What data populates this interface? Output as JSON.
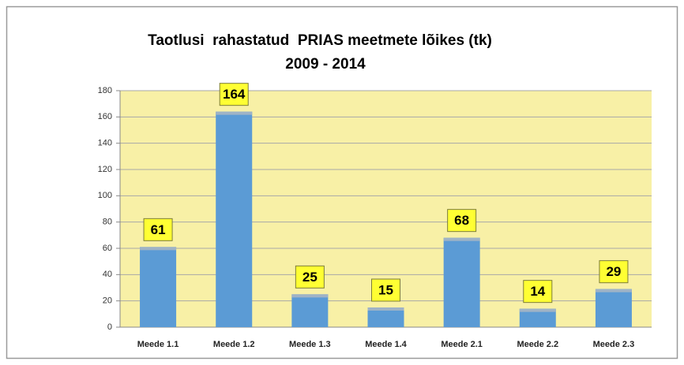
{
  "chart_data": {
    "type": "bar",
    "title": "Taotlusi  rahastatud  PRIAS meetmete lõikes (tk)",
    "subtitle": "2009 - 2014",
    "categories": [
      "Meede 1.1",
      "Meede 1.2",
      "Meede 1.3",
      "Meede 1.4",
      "Meede 2.1",
      "Meede 2.2",
      "Meede 2.3"
    ],
    "values": [
      61,
      164,
      25,
      15,
      68,
      14,
      29
    ],
    "color": "#5b9bd5",
    "ylim": [
      0,
      180
    ],
    "yticks": [
      0,
      20,
      40,
      60,
      80,
      100,
      120,
      140,
      160,
      180
    ],
    "grid": true
  }
}
